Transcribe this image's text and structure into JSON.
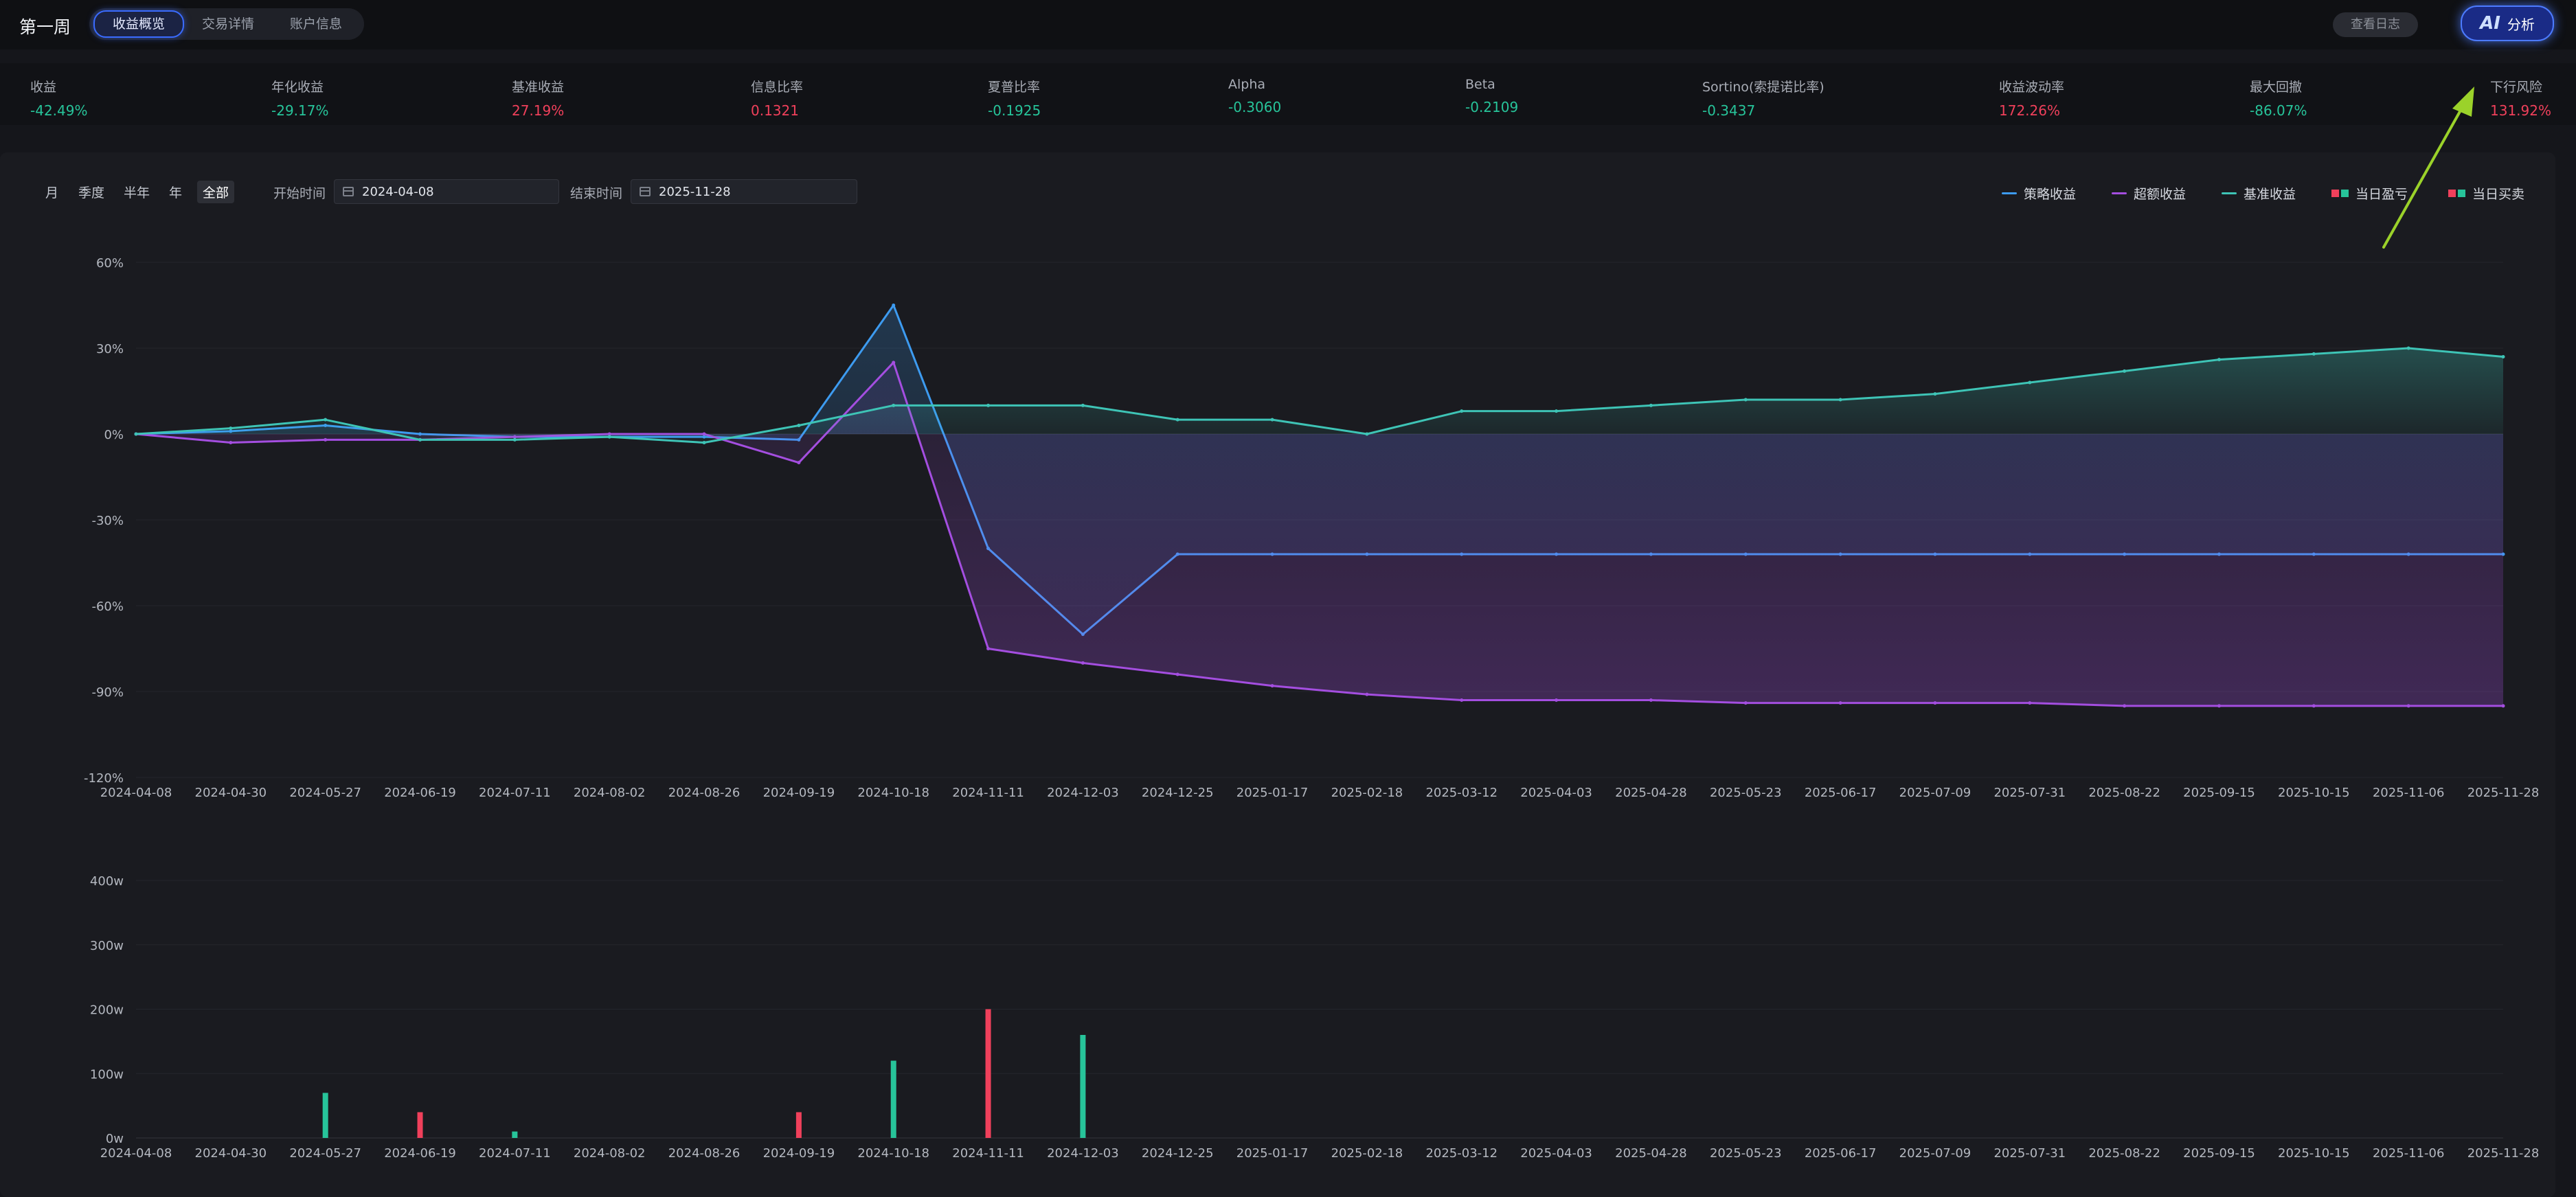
{
  "app": {
    "title": "第一周"
  },
  "tabs": [
    {
      "label": "收益概览",
      "active": true
    },
    {
      "label": "交易详情"
    },
    {
      "label": "账户信息"
    }
  ],
  "header": {
    "log_label": "查看日志",
    "ai_icon": "AI",
    "ai_label": "分析"
  },
  "metrics": [
    {
      "label": "收益",
      "value": "-42.49%",
      "tone": "neg"
    },
    {
      "label": "年化收益",
      "value": "-29.17%",
      "tone": "neg"
    },
    {
      "label": "基准收益",
      "value": "27.19%",
      "tone": "pos"
    },
    {
      "label": "信息比率",
      "value": "0.1321",
      "tone": "pos"
    },
    {
      "label": "夏普比率",
      "value": "-0.1925",
      "tone": "neg"
    },
    {
      "label": "Alpha",
      "value": "-0.3060",
      "tone": "neg"
    },
    {
      "label": "Beta",
      "value": "-0.2109",
      "tone": "neg"
    },
    {
      "label": "Sortino(索提诺比率)",
      "value": "-0.3437",
      "tone": "neg"
    },
    {
      "label": "收益波动率",
      "value": "172.26%",
      "tone": "pos"
    },
    {
      "label": "最大回撤",
      "value": "-86.07%",
      "tone": "neg"
    },
    {
      "label": "下行风险",
      "value": "131.92%",
      "tone": "pos"
    }
  ],
  "filters": {
    "periods": [
      {
        "label": "月"
      },
      {
        "label": "季度"
      },
      {
        "label": "半年"
      },
      {
        "label": "年"
      },
      {
        "label": "全部",
        "active": true
      }
    ],
    "start_label": "开始时间",
    "start_value": "2024-04-08",
    "end_label": "结束时间",
    "end_value": "2025-11-28",
    "calendar_icon": "calendar-icon"
  },
  "legend": [
    {
      "label": "策略收益",
      "color": "#3d9bf0",
      "kind": "line"
    },
    {
      "label": "超额收益",
      "color": "#a44ee0",
      "kind": "line"
    },
    {
      "label": "基准收益",
      "color": "#3ec4b6",
      "kind": "line"
    },
    {
      "label": "当日盈亏",
      "colors": [
        "#f0405b",
        "#27c49a"
      ],
      "kind": "squares"
    },
    {
      "label": "当日买卖",
      "colors": [
        "#f0405b",
        "#27c49a"
      ],
      "kind": "squares"
    }
  ],
  "colors": {
    "strategy": "#3d9bf0",
    "excess": "#a44ee0",
    "benchmark": "#3ec4b6",
    "buy": "#f0405b",
    "sell": "#27c49a",
    "arrow": "#9bd22a"
  },
  "chart_data": [
    {
      "type": "line",
      "x": [
        "2024-04-08",
        "2024-04-30",
        "2024-05-27",
        "2024-06-19",
        "2024-07-11",
        "2024-08-02",
        "2024-08-26",
        "2024-09-19",
        "2024-10-18",
        "2024-11-11",
        "2024-12-03",
        "2024-12-25",
        "2025-01-17",
        "2025-02-18",
        "2025-03-12",
        "2025-04-03",
        "2025-04-28",
        "2025-05-23",
        "2025-06-17",
        "2025-07-09",
        "2025-07-31",
        "2025-08-22",
        "2025-09-15",
        "2025-10-15",
        "2025-11-06",
        "2025-11-28"
      ],
      "yticks": [
        "60%",
        "30%",
        "0%",
        "-30%",
        "-60%",
        "-90%",
        "-120%"
      ],
      "ylim": [
        -120,
        60
      ],
      "series": [
        {
          "name": "策略收益",
          "values": [
            0,
            1,
            3,
            0,
            -1,
            -1,
            -1,
            -2,
            45,
            -40,
            -70,
            -42,
            -42,
            -42,
            -42,
            -42,
            -42,
            -42,
            -42,
            -42,
            -42,
            -42,
            -42,
            -42,
            -42,
            -42
          ]
        },
        {
          "name": "超额收益",
          "values": [
            0,
            -3,
            -2,
            -2,
            -1,
            0,
            0,
            -10,
            25,
            -75,
            -80,
            -84,
            -88,
            -91,
            -93,
            -93,
            -93,
            -94,
            -94,
            -94,
            -94,
            -95,
            -95,
            -95,
            -95,
            -95
          ]
        },
        {
          "name": "基准收益",
          "values": [
            0,
            2,
            5,
            -2,
            -2,
            -1,
            -3,
            3,
            10,
            10,
            10,
            5,
            5,
            0,
            8,
            8,
            10,
            12,
            12,
            14,
            18,
            22,
            26,
            28,
            30,
            27
          ]
        }
      ]
    },
    {
      "type": "bar",
      "x": [
        "2024-04-08",
        "2024-04-30",
        "2024-05-27",
        "2024-06-19",
        "2024-07-11",
        "2024-08-02",
        "2024-08-26",
        "2024-09-19",
        "2024-10-18",
        "2024-11-11",
        "2024-12-03",
        "2024-12-25",
        "2025-01-17",
        "2025-02-18",
        "2025-03-12",
        "2025-04-03",
        "2025-04-28",
        "2025-05-23",
        "2025-06-17",
        "2025-07-09",
        "2025-07-31",
        "2025-08-22",
        "2025-09-15",
        "2025-10-15",
        "2025-11-06",
        "2025-11-28"
      ],
      "yticks": [
        "400w",
        "300w",
        "200w",
        "100w",
        "0w"
      ],
      "ylim": [
        0,
        400
      ],
      "series": [
        {
          "name": "当日买卖",
          "values": [
            0,
            0,
            70,
            40,
            10,
            0,
            0,
            40,
            120,
            200,
            160,
            0,
            0,
            0,
            0,
            0,
            0,
            0,
            0,
            0,
            0,
            0,
            0,
            0,
            0,
            0
          ]
        }
      ]
    }
  ]
}
